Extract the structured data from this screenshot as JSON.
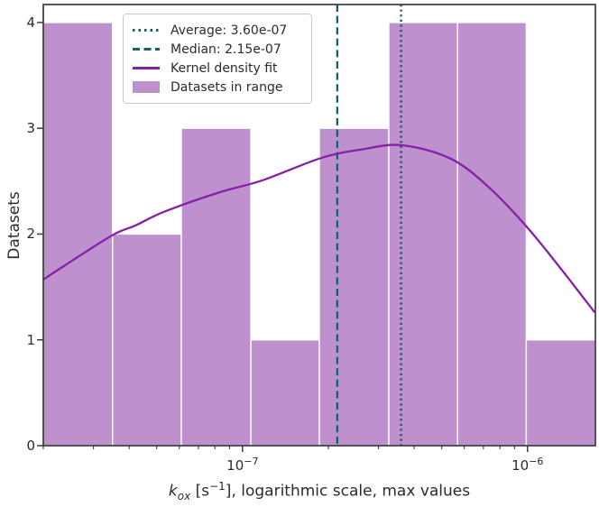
{
  "figure": {
    "ylabel": "Datasets",
    "xlabel": {
      "var": "k",
      "var_sub": "ox",
      "unit_open": " [s",
      "unit_exp": "−1",
      "unit_close": "]",
      "suffix": ", logarithmic scale, max values",
      "plain": "k_ox [s^-1], logarithmic scale, max values"
    }
  },
  "legend": {
    "items": [
      {
        "name": "average",
        "style": "dotted",
        "color": "#16606B",
        "label": "Average: 3.60e-07"
      },
      {
        "name": "median",
        "style": "dashed",
        "color": "#16606B",
        "label": "Median: 2.15e-07"
      },
      {
        "name": "kde",
        "style": "solid",
        "color": "#8521A8",
        "label": "Kernel density fit"
      },
      {
        "name": "hist",
        "style": "patch",
        "color": "#BE90CE",
        "label": "Datasets in range"
      }
    ]
  },
  "chart_data": {
    "type": "histogram+kde",
    "x_scale": "log",
    "xlim": [
      2e-08,
      1.73e-06
    ],
    "ylim": [
      0,
      4.17
    ],
    "y_ticks": [
      0,
      1,
      2,
      3,
      4
    ],
    "x_major_ticks": [
      {
        "value": 1e-07,
        "base": "10",
        "exp": "−7"
      },
      {
        "value": 1e-06,
        "base": "10",
        "exp": "−6"
      }
    ],
    "x_minor_ticks": [
      2e-08,
      3e-08,
      4e-08,
      5e-08,
      6e-08,
      7e-08,
      8e-08,
      9e-08,
      2e-07,
      3e-07,
      4e-07,
      5e-07,
      6e-07,
      7e-07,
      8e-07,
      9e-07
    ],
    "bins": {
      "edges": [
        2e-08,
        3.5e-08,
        6.1e-08,
        1.07e-07,
        1.86e-07,
        3.26e-07,
        5.68e-07,
        9.9e-07,
        1.73e-06
      ],
      "counts": [
        4,
        2,
        3,
        1,
        3,
        4,
        4,
        1
      ]
    },
    "kde_curve": {
      "x": [
        2e-08,
        2.4e-08,
        3.5e-08,
        4.2e-08,
        5.3e-08,
        8.2e-08,
        1.18e-07,
        1.89e-07,
        2.62e-07,
        3.63e-07,
        5.4e-07,
        7.4e-07,
        1e-06,
        1.32e-06,
        1.72e-06
      ],
      "y": [
        1.57,
        1.71,
        1.99,
        2.08,
        2.21,
        2.39,
        2.51,
        2.72,
        2.8,
        2.84,
        2.71,
        2.43,
        2.06,
        1.66,
        1.26
      ]
    },
    "average": {
      "value": 3.6e-07,
      "label": "Average: 3.60e-07"
    },
    "median": {
      "value": 2.15e-07,
      "label": "Median: 2.15e-07"
    },
    "colors": {
      "bar_fill": "#BE90CE",
      "bar_edge": "#FFFFFF",
      "kde_line": "#8521A8",
      "stat_lines": "#16606B",
      "spine": "#3B3B3B",
      "text": "#2B2B2B"
    }
  }
}
